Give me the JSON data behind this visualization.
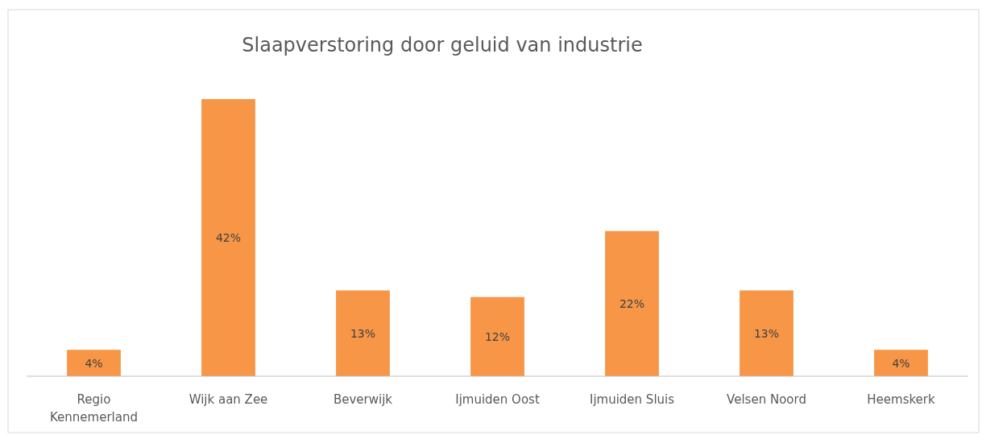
{
  "chart_data": {
    "type": "bar",
    "title": "Slaapverstoring door geluid van industrie",
    "categories": [
      "Regio Kennemerland",
      "Wijk aan Zee",
      "Beverwijk",
      "Ijmuiden Oost",
      "Ijmuiden Sluis",
      "Velsen Noord",
      "Heemskerk"
    ],
    "values": [
      4,
      42,
      13,
      12,
      22,
      13,
      4
    ],
    "value_labels": [
      "4%",
      "42%",
      "13%",
      "12%",
      "22%",
      "13%",
      "4%"
    ],
    "color": "#f79646"
  }
}
